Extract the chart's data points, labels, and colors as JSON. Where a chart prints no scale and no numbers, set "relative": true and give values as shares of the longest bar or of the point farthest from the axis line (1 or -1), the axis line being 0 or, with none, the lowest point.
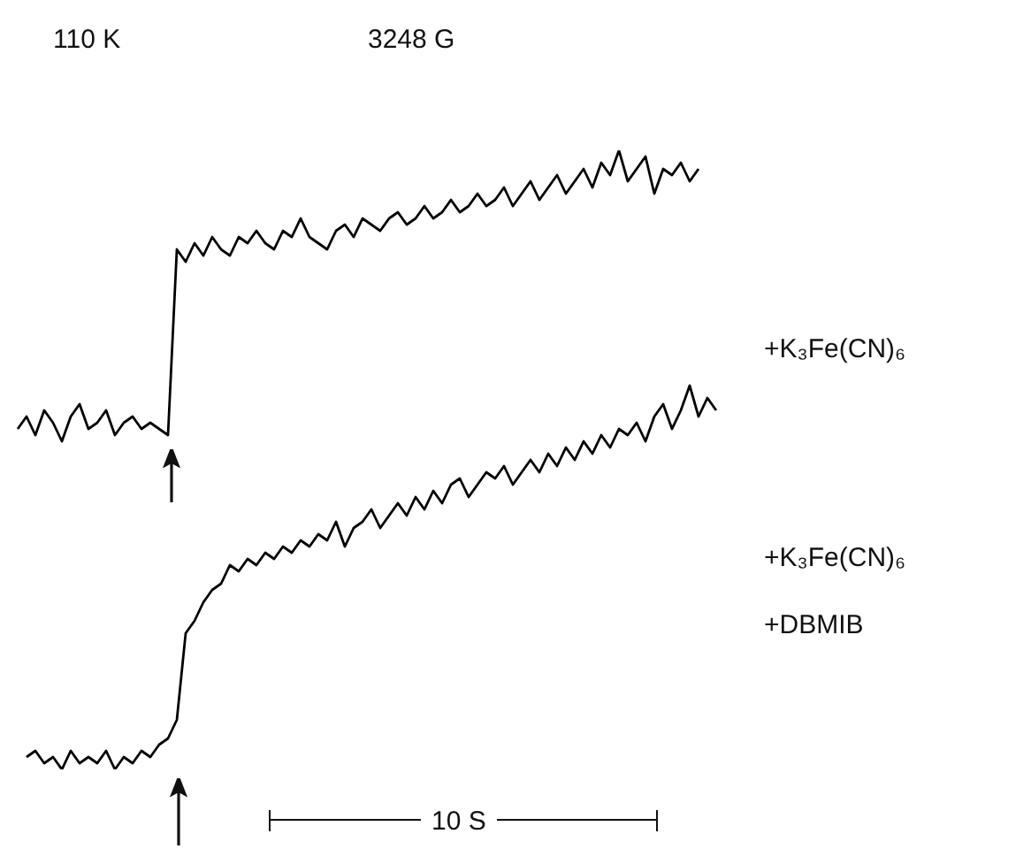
{
  "chart_data": {
    "type": "line",
    "relative": true,
    "categories": [
      null,
      null,
      null,
      null,
      null,
      null,
      null,
      null,
      null,
      null,
      null,
      null,
      null,
      null,
      null,
      null,
      null,
      null,
      null,
      null,
      null,
      null,
      null,
      null,
      null,
      null,
      null,
      null,
      null,
      null,
      null,
      null,
      null,
      null,
      null,
      null,
      null,
      null,
      null,
      null,
      null,
      null,
      null,
      null,
      null,
      null,
      null,
      null,
      null,
      null,
      null,
      null,
      null,
      null,
      null,
      null,
      null,
      null,
      null,
      null,
      null,
      null,
      null,
      null,
      null,
      null,
      null,
      null,
      null,
      null,
      null,
      null,
      null,
      null,
      null,
      null,
      null,
      null,
      null,
      null
    ],
    "series": [
      {
        "color": "#000000",
        "values": [
          0.55,
          0.57,
          0.54,
          0.58,
          0.56,
          0.53,
          0.57,
          0.59,
          0.55,
          0.56,
          0.58,
          0.54,
          0.56,
          0.57,
          0.55,
          0.56,
          0.55,
          0.54,
          0.84,
          0.82,
          0.85,
          0.83,
          0.86,
          0.84,
          0.83,
          0.86,
          0.85,
          0.87,
          0.85,
          0.84,
          0.87,
          0.86,
          0.89,
          0.86,
          0.85,
          0.84,
          0.87,
          0.88,
          0.86,
          0.89,
          0.88,
          0.87,
          0.89,
          0.9,
          0.88,
          0.89,
          0.91,
          0.89,
          0.9,
          0.92,
          0.9,
          0.91,
          0.93,
          0.91,
          0.92,
          0.94,
          0.91,
          0.93,
          0.95,
          0.92,
          0.94,
          0.96,
          0.93,
          0.95,
          0.97,
          0.94,
          0.98,
          0.96,
          1.0,
          0.95,
          0.97,
          0.99,
          0.93,
          0.97,
          0.96,
          0.98,
          0.95,
          0.97,
          null,
          null
        ]
      },
      {
        "color": "#000000",
        "values": [
          null,
          0.02,
          0.03,
          0.01,
          0.02,
          0.0,
          0.03,
          0.01,
          0.02,
          0.01,
          0.03,
          0.0,
          0.02,
          0.01,
          0.03,
          0.02,
          0.04,
          0.05,
          0.08,
          0.22,
          0.24,
          0.27,
          0.29,
          0.3,
          0.33,
          0.32,
          0.34,
          0.33,
          0.35,
          0.34,
          0.36,
          0.35,
          0.37,
          0.36,
          0.38,
          0.37,
          0.4,
          0.36,
          0.39,
          0.4,
          0.42,
          0.39,
          0.41,
          0.43,
          0.41,
          0.44,
          0.42,
          0.45,
          0.43,
          0.46,
          0.47,
          0.44,
          0.46,
          0.48,
          0.47,
          0.49,
          0.46,
          0.48,
          0.5,
          0.48,
          0.51,
          0.49,
          0.52,
          0.5,
          0.53,
          0.51,
          0.54,
          0.52,
          0.55,
          0.54,
          0.56,
          0.53,
          0.57,
          0.59,
          0.55,
          0.58,
          0.62,
          0.57,
          0.6,
          0.58
        ]
      }
    ],
    "annotations": [
      "110 K",
      "3248 G",
      "+K₃Fe(CN)₆",
      "+K₃Fe(CN)₆",
      "+DBMIB",
      "10 S"
    ]
  }
}
